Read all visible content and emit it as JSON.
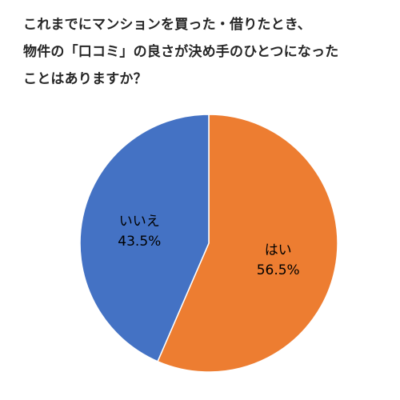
{
  "title_lines": [
    "これまでにマンションを買った・借りたとき、",
    "物件の「口コミ」の良さが決め手のひとつになった",
    "ことはありますか？"
  ],
  "chart_data": {
    "type": "pie",
    "title": "これまでにマンションを買った・借りたとき、物件の「口コミ」の良さが決め手のひとつになったことはありますか？",
    "slices": [
      {
        "label": "はい",
        "value": 56.5,
        "value_label": "56.5%",
        "color": "#ED7D31"
      },
      {
        "label": "いいえ",
        "value": 43.5,
        "value_label": "43.5%",
        "color": "#4472C4"
      }
    ],
    "start": "12 o'clock",
    "direction": "clockwise",
    "legend": "none"
  }
}
